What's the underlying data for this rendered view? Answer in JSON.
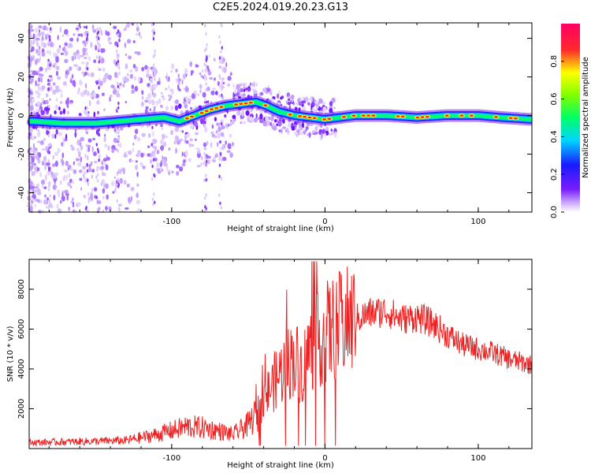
{
  "title": "C2E5.2024.019.20.23.G13",
  "colors": {
    "snr_line": "#ee2222",
    "axis": "#000000",
    "colormap": [
      "#ffffff",
      "#9b59ff",
      "#6a0dff",
      "#2020ff",
      "#00c8ff",
      "#00ff80",
      "#ffff00",
      "#ff2222",
      "#ff0070"
    ]
  },
  "chart_data": [
    {
      "type": "heatmap",
      "xlabel": "Height of straight line (km)",
      "ylabel": "Frequency (Hz)",
      "xlim": [
        -193,
        135
      ],
      "ylim": [
        -50,
        48
      ],
      "xticks": [
        -100,
        0,
        100
      ],
      "yticks": [
        -40,
        -20,
        0,
        20,
        40
      ],
      "colorbar": {
        "label": "Normalized spectral amplitude",
        "range": [
          0,
          1
        ],
        "ticks": [
          0.0,
          0.2,
          0.4,
          0.6,
          0.8
        ]
      },
      "ridge": {
        "x": [
          -190,
          -170,
          -150,
          -135,
          -120,
          -105,
          -95,
          -85,
          -75,
          -65,
          -55,
          -45,
          -38,
          -30,
          -20,
          0,
          20,
          40,
          60,
          80,
          100,
          115,
          135
        ],
        "y": [
          -3,
          -4,
          -4,
          -3,
          -2,
          -1,
          -3,
          0,
          3,
          5,
          6,
          7,
          5,
          2,
          0,
          -2,
          0,
          0,
          -1,
          0,
          0,
          -1,
          -2
        ]
      }
    },
    {
      "type": "line",
      "xlabel": "Height of straight line (km)",
      "ylabel": "SNR (10 * v/v)",
      "xlim": [
        -193,
        135
      ],
      "ylim": [
        0,
        9500
      ],
      "xticks": [
        -100,
        0,
        100
      ],
      "yticks": [
        2000,
        4000,
        6000,
        8000
      ],
      "series": [
        {
          "x": [
            -193,
            -160,
            -130,
            -110,
            -100,
            -90,
            -80,
            -70,
            -60,
            -50,
            -42,
            -36,
            -30,
            -25,
            -20,
            -15,
            -10,
            0,
            10,
            20,
            30,
            40,
            50,
            60,
            70,
            80,
            90,
            100,
            110,
            120,
            135
          ],
          "y": [
            300,
            350,
            400,
            700,
            900,
            1100,
            1050,
            900,
            700,
            1200,
            2000,
            3000,
            3700,
            4200,
            4600,
            4000,
            5000,
            5800,
            6200,
            6500,
            6800,
            6900,
            6500,
            6600,
            6300,
            5700,
            5200,
            5000,
            4800,
            4500,
            4200
          ]
        }
      ]
    }
  ]
}
